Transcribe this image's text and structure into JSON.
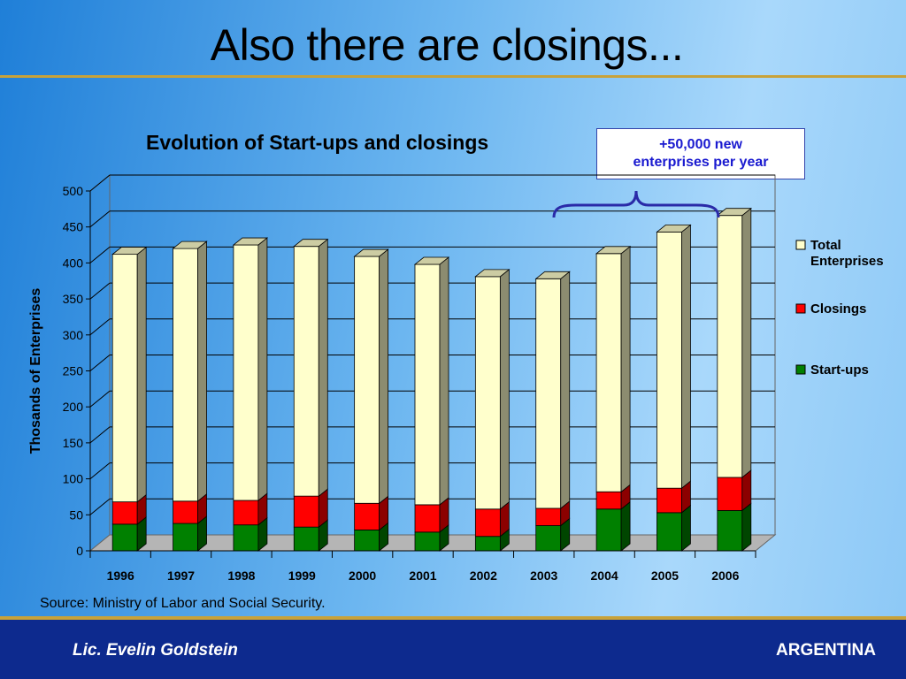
{
  "slide": {
    "title": "Also there are closings..."
  },
  "callout": {
    "line1": "+50,000 new",
    "line2": "enterprises per year"
  },
  "source": "Source: Ministry of Labor and Social Security.",
  "footer": {
    "author": "Lic. Evelin Goldstein",
    "country": "ARGENTINA"
  },
  "chart_data": {
    "type": "bar",
    "stacked": true,
    "three_d": true,
    "title": "Evolution of Start-ups and closings",
    "xlabel": "",
    "ylabel": "Thosands of Enterprises",
    "ylim": [
      0,
      500
    ],
    "yticks": [
      0,
      50,
      100,
      150,
      200,
      250,
      300,
      350,
      400,
      450,
      500
    ],
    "grid": true,
    "legend_position": "right",
    "categories": [
      "1996",
      "1997",
      "1998",
      "1999",
      "2000",
      "2001",
      "2002",
      "2003",
      "2004",
      "2005",
      "2006"
    ],
    "series": [
      {
        "name": "Start-ups",
        "color": "#008000",
        "values": [
          37,
          38,
          36,
          33,
          29,
          26,
          20,
          35,
          58,
          53,
          56
        ]
      },
      {
        "name": "Closings",
        "color": "#ff0000",
        "values": [
          31,
          31,
          34,
          43,
          37,
          38,
          38,
          24,
          24,
          34,
          46
        ]
      },
      {
        "name": "Total Enterprises",
        "color": "#ffffcc",
        "values": [
          344,
          351,
          355,
          347,
          343,
          334,
          323,
          319,
          331,
          356,
          364
        ]
      }
    ],
    "legend_order": [
      "Total Enterprises",
      "Closings",
      "Start-ups"
    ]
  }
}
